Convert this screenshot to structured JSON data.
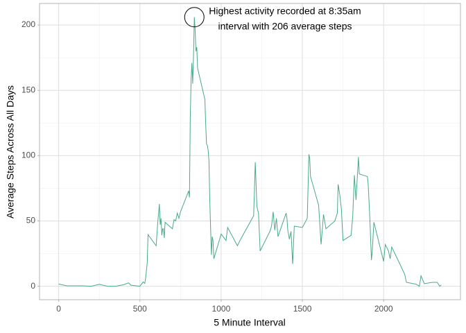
{
  "chart_data": {
    "type": "line",
    "x_label": "5 Minute Interval",
    "y_label": "Average Steps Across All Days",
    "annotation": [
      "Highest activity recorded at 8:35am",
      "interval with 206 average steps"
    ],
    "annotation_point": {
      "x": 835,
      "y": 206
    },
    "x": [
      0,
      50,
      100,
      150,
      200,
      250,
      300,
      350,
      400,
      430,
      445,
      500,
      520,
      530,
      535,
      545,
      550,
      600,
      610,
      620,
      625,
      630,
      635,
      640,
      645,
      650,
      655,
      700,
      710,
      720,
      730,
      740,
      750,
      800,
      805,
      810,
      815,
      820,
      825,
      830,
      835,
      840,
      845,
      850,
      855,
      900,
      905,
      910,
      915,
      920,
      925,
      930,
      935,
      940,
      945,
      950,
      955,
      1000,
      1030,
      1040,
      1100,
      1120,
      1200,
      1210,
      1220,
      1230,
      1240,
      1300,
      1310,
      1320,
      1330,
      1340,
      1350,
      1400,
      1405,
      1410,
      1420,
      1430,
      1440,
      1450,
      1500,
      1530,
      1540,
      1545,
      1550,
      1600,
      1615,
      1630,
      1645,
      1700,
      1715,
      1720,
      1730,
      1740,
      1750,
      1800,
      1810,
      1820,
      1830,
      1845,
      1850,
      1900,
      1905,
      1915,
      1925,
      1930,
      1940,
      2000,
      2010,
      2030,
      2040,
      2050,
      2100,
      2130,
      2140,
      2200,
      2220,
      2230,
      2250,
      2300,
      2330,
      2345,
      2355
    ],
    "series": [
      {
        "name": "steps",
        "color": "#49a88b",
        "values": [
          1.7,
          0.3,
          0.3,
          0.3,
          0,
          1.5,
          0,
          0,
          1.2,
          2.6,
          0.8,
          0,
          3.3,
          2.2,
          6,
          18,
          39.5,
          31,
          49,
          63,
          47,
          52,
          39,
          44,
          44,
          37,
          49,
          44,
          51,
          50,
          56,
          52,
          57,
          73,
          68,
          129,
          158,
          171,
          155,
          177,
          206,
          196,
          180,
          183,
          167,
          143,
          124,
          109,
          108,
          104,
          96,
          66,
          45,
          24,
          38,
          35,
          21,
          40,
          35,
          45,
          31,
          36,
          54,
          95,
          61,
          56,
          27,
          42,
          46,
          57,
          43,
          52,
          38,
          56,
          52,
          43,
          36,
          42,
          17,
          46,
          45,
          52,
          101,
          98,
          84,
          62,
          32,
          55,
          44,
          50,
          56,
          78,
          70,
          59,
          35,
          39,
          54,
          85,
          66,
          99,
          86,
          84,
          78,
          52,
          20,
          27,
          49,
          19,
          32,
          27,
          21,
          30,
          17,
          9,
          3,
          1.6,
          0,
          8,
          2,
          3,
          3,
          0,
          1
        ]
      }
    ],
    "xlim": [
      -117.75,
      2472.75
    ],
    "ylim": [
      -10.3,
      216.5
    ],
    "xticks": [
      0,
      500,
      1000,
      1500,
      2000
    ],
    "yticks": [
      0,
      50,
      100,
      150,
      200
    ],
    "x_minor_ticks": [
      250,
      750,
      1250,
      1750,
      2250
    ],
    "y_minor_ticks": [
      25,
      75,
      125,
      175
    ],
    "grid": true
  }
}
